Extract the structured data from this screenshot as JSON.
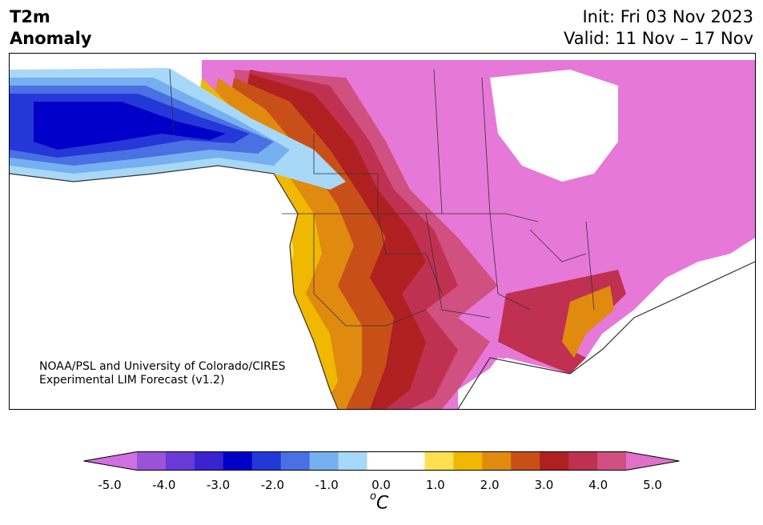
{
  "title": {
    "line1": "T2m",
    "line2": "Anomaly"
  },
  "subtitle": {
    "init": "Init: Fri 03 Nov 2023",
    "valid": "Valid: 11 Nov – 17 Nov"
  },
  "credit": {
    "line1": "NOAA/PSL and University of Colorado/CIRES",
    "line2": "Experimental LIM Forecast (v1.2)"
  },
  "colorbar": {
    "colors": [
      "#d070e0",
      "#9a52d8",
      "#6a3ad8",
      "#3a24d0",
      "#0000c8",
      "#2438d8",
      "#4a70e4",
      "#76b0f0",
      "#a8d8f8",
      "#ffffff",
      "#ffffff",
      "#fce050",
      "#f0b800",
      "#e08a10",
      "#c85018",
      "#b02020",
      "#c03050",
      "#d05080",
      "#e070c8"
    ],
    "ticks": [
      "-5.0",
      "-4.0",
      "-3.0",
      "-2.0",
      "-1.0",
      "0.0",
      "1.0",
      "2.0",
      "3.0",
      "4.0",
      "5.0"
    ],
    "unit_prefix": "o",
    "unit": "C"
  }
}
